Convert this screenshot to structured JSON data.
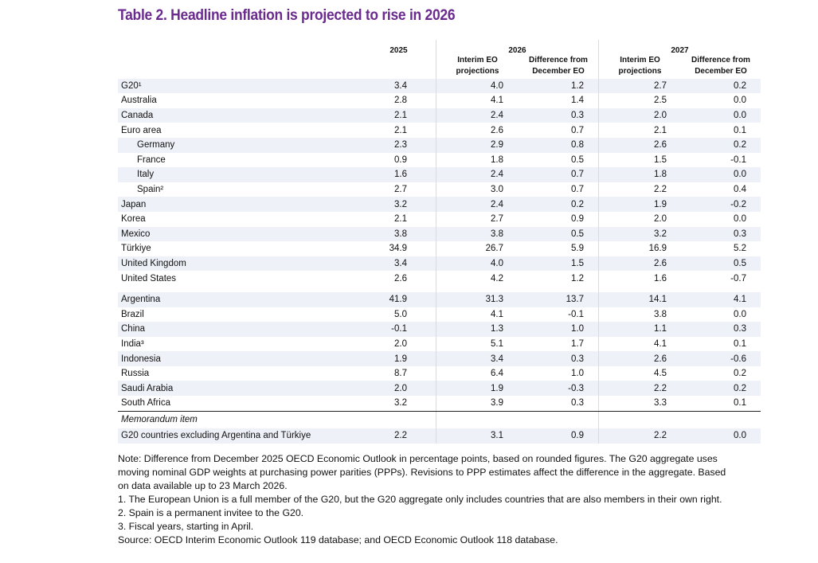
{
  "title": "Table  2. Headline inflation is projected to rise in 2026",
  "header": {
    "y2025": "2025",
    "y2026": "2026",
    "y2027": "2027",
    "interim": "Interim EO projections",
    "diff": "Difference from December EO"
  },
  "rows": [
    {
      "label": "G20¹",
      "v": [
        "3.4",
        "4.0",
        "1.2",
        "2.7",
        "0.2"
      ]
    },
    {
      "label": "Australia",
      "v": [
        "2.8",
        "4.1",
        "1.4",
        "2.5",
        "0.0"
      ]
    },
    {
      "label": "Canada",
      "v": [
        "2.1",
        "2.4",
        "0.3",
        "2.0",
        "0.0"
      ]
    },
    {
      "label": "Euro area",
      "v": [
        "2.1",
        "2.6",
        "0.7",
        "2.1",
        "0.1"
      ]
    },
    {
      "label": "Germany",
      "v": [
        "2.3",
        "2.9",
        "0.8",
        "2.6",
        "0.2"
      ],
      "indent": true
    },
    {
      "label": "France",
      "v": [
        "0.9",
        "1.8",
        "0.5",
        "1.5",
        "-0.1"
      ],
      "indent": true
    },
    {
      "label": "Italy",
      "v": [
        "1.6",
        "2.4",
        "0.7",
        "1.8",
        "0.0"
      ],
      "indent": true
    },
    {
      "label": "Spain²",
      "v": [
        "2.7",
        "3.0",
        "0.7",
        "2.2",
        "0.4"
      ],
      "indent": true
    },
    {
      "label": "Japan",
      "v": [
        "3.2",
        "2.4",
        "0.2",
        "1.9",
        "-0.2"
      ]
    },
    {
      "label": "Korea",
      "v": [
        "2.1",
        "2.7",
        "0.9",
        "2.0",
        "0.0"
      ]
    },
    {
      "label": "Mexico",
      "v": [
        "3.8",
        "3.8",
        "0.5",
        "3.2",
        "0.3"
      ]
    },
    {
      "label": "Türkiye",
      "v": [
        "34.9",
        "26.7",
        "5.9",
        "16.9",
        "5.2"
      ]
    },
    {
      "label": "United Kingdom",
      "v": [
        "3.4",
        "4.0",
        "1.5",
        "2.6",
        "0.5"
      ]
    },
    {
      "label": "United States",
      "v": [
        "2.6",
        "4.2",
        "1.2",
        "1.6",
        "-0.7"
      ]
    }
  ],
  "rows2": [
    {
      "label": "Argentina",
      "v": [
        "41.9",
        "31.3",
        "13.7",
        "14.1",
        "4.1"
      ]
    },
    {
      "label": "Brazil",
      "v": [
        "5.0",
        "4.1",
        "-0.1",
        "3.8",
        "0.0"
      ]
    },
    {
      "label": "China",
      "v": [
        "-0.1",
        "1.3",
        "1.0",
        "1.1",
        "0.3"
      ]
    },
    {
      "label": "India³",
      "v": [
        "2.0",
        "5.1",
        "1.7",
        "4.1",
        "0.1"
      ]
    },
    {
      "label": "Indonesia",
      "v": [
        "1.9",
        "3.4",
        "0.3",
        "2.6",
        "-0.6"
      ]
    },
    {
      "label": "Russia",
      "v": [
        "8.7",
        "6.4",
        "1.0",
        "4.5",
        "0.2"
      ]
    },
    {
      "label": "Saudi Arabia",
      "v": [
        "2.0",
        "1.9",
        "-0.3",
        "2.2",
        "0.2"
      ]
    },
    {
      "label": "South Africa",
      "v": [
        "3.2",
        "3.9",
        "0.3",
        "3.3",
        "0.1"
      ]
    }
  ],
  "memo": {
    "label": "Memorandum item",
    "row": {
      "label": "G20 countries excluding Argentina and Türkiye",
      "v": [
        "2.2",
        "3.1",
        "0.9",
        "2.2",
        "0.0"
      ]
    }
  },
  "notes": {
    "note": "Note: Difference from December 2025 OECD Economic Outlook in percentage points, based on rounded figures. The G20 aggregate uses moving nominal GDP weights at purchasing power parities (PPPs). Revisions to PPP estimates affect the difference in the aggregate. Based on data available up to 23 March 2026.",
    "fn1": "1.   The European Union is a full member of the G20, but the G20 aggregate only includes countries that are also members in their own right.",
    "fn2": "2.   Spain is a permanent invitee to the G20.",
    "fn3": "3.   Fiscal years, starting in April.",
    "source": "Source: OECD Interim Economic Outlook 119 database; and OECD Economic Outlook 118 database."
  },
  "colors": {
    "title": "#6a2a8e",
    "stripe": "#eef1f8"
  }
}
